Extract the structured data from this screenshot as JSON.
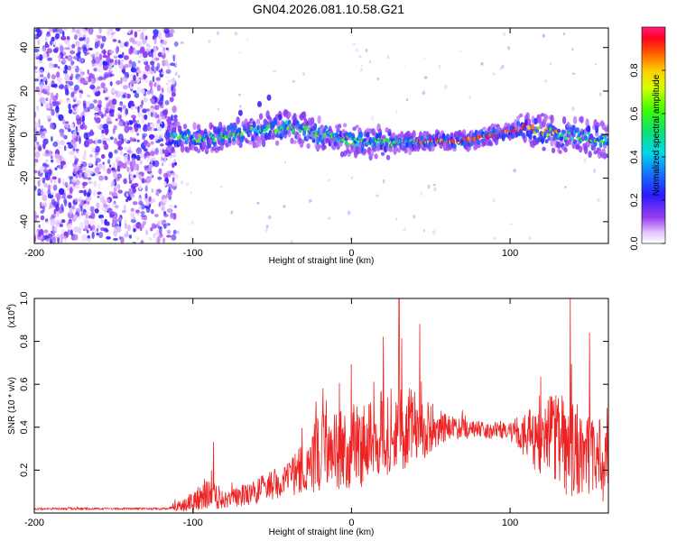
{
  "title": "GN04.2026.081.10.58.G21",
  "chart_data": [
    {
      "type": "heatmap",
      "name": "spectrogram",
      "xlabel": "Height of straight line (km)",
      "ylabel": "Frequency (Hz)",
      "xlim": [
        -200,
        162
      ],
      "ylim": [
        -50,
        49
      ],
      "xticks": [
        -200,
        -100,
        0,
        100
      ],
      "yticks": [
        -40,
        -20,
        0,
        20,
        40
      ],
      "colorbar": {
        "label": "Normalized spectral amplitude",
        "range": [
          0,
          1
        ],
        "ticks": [
          "0.0",
          "0.2",
          "0.4",
          "0.6",
          "0.8"
        ],
        "tick_values": [
          0.0,
          0.2,
          0.4,
          0.6,
          0.8
        ]
      },
      "ridge": [
        {
          "x": -115,
          "freq": -1
        },
        {
          "x": -90,
          "freq": -2
        },
        {
          "x": -70,
          "freq": 1
        },
        {
          "x": -55,
          "freq": 2
        },
        {
          "x": -40,
          "freq": 4
        },
        {
          "x": -25,
          "freq": 1
        },
        {
          "x": 0,
          "freq": -3
        },
        {
          "x": 25,
          "freq": -4
        },
        {
          "x": 50,
          "freq": -3
        },
        {
          "x": 70,
          "freq": -3
        },
        {
          "x": 90,
          "freq": 0
        },
        {
          "x": 110,
          "freq": 3
        },
        {
          "x": 130,
          "freq": 0
        },
        {
          "x": 162,
          "freq": -2
        }
      ],
      "noise_region": [
        -200,
        -115
      ]
    },
    {
      "type": "line",
      "name": "snr",
      "xlabel": "Height of straight line (km)",
      "ylabel": "SNR (10 * v/v)",
      "scale_label_base": "(x10",
      "scale_label_exp": "4",
      "scale_label_close": ")",
      "xlim": [
        -200,
        162
      ],
      "ylim": [
        0,
        1.0
      ],
      "xticks": [
        -200,
        -100,
        0,
        100
      ],
      "yticks": [
        "0.2",
        "0.4",
        "0.6",
        "0.8",
        "1.0"
      ],
      "ytick_values": [
        0.2,
        0.4,
        0.6,
        0.8,
        1.0
      ],
      "color": "#ee2222",
      "envelope": [
        {
          "x": -200,
          "base": 0.02,
          "amp": 0.005
        },
        {
          "x": -115,
          "base": 0.02,
          "amp": 0.005
        },
        {
          "x": -100,
          "base": 0.05,
          "amp": 0.05
        },
        {
          "x": -90,
          "base": 0.1,
          "amp": 0.08
        },
        {
          "x": -80,
          "base": 0.06,
          "amp": 0.04
        },
        {
          "x": -60,
          "base": 0.1,
          "amp": 0.06
        },
        {
          "x": -40,
          "base": 0.16,
          "amp": 0.08
        },
        {
          "x": -20,
          "base": 0.28,
          "amp": 0.18
        },
        {
          "x": 0,
          "base": 0.3,
          "amp": 0.2
        },
        {
          "x": 20,
          "base": 0.38,
          "amp": 0.22
        },
        {
          "x": 40,
          "base": 0.4,
          "amp": 0.18
        },
        {
          "x": 60,
          "base": 0.4,
          "amp": 0.06
        },
        {
          "x": 80,
          "base": 0.39,
          "amp": 0.04
        },
        {
          "x": 100,
          "base": 0.38,
          "amp": 0.04
        },
        {
          "x": 110,
          "base": 0.36,
          "amp": 0.12
        },
        {
          "x": 130,
          "base": 0.33,
          "amp": 0.24
        },
        {
          "x": 162,
          "base": 0.25,
          "amp": 0.2
        }
      ],
      "peaks": [
        {
          "x": -87,
          "y": 0.33
        },
        {
          "x": 30,
          "y": 1.0
        },
        {
          "x": 138,
          "y": 1.0
        },
        {
          "x": 43,
          "y": 0.88
        },
        {
          "x": 150,
          "y": 0.84
        },
        {
          "x": -18,
          "y": 0.58
        },
        {
          "x": 20,
          "y": 0.82
        }
      ]
    }
  ]
}
